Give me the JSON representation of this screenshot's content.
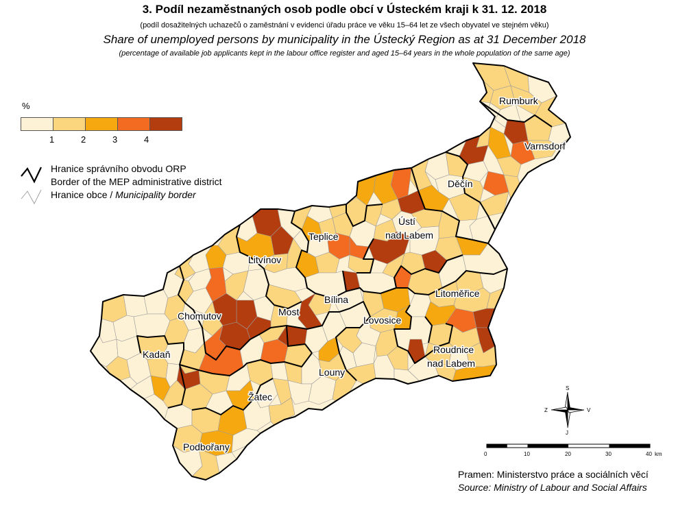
{
  "title": {
    "cz": "3. Podíl nezaměstnaných osob podle obcí v Ústeckém kraji k 31. 12. 2018",
    "cz_sub": "(podíl dosažitelných uchazečů o zaměstnání v evidenci úřadu práce ve věku 15–64 let ze všech obyvatel ve stejném věku)",
    "en": "Share of unemployed persons by municipality in the Ústecký Region as at 31 December 2018",
    "en_sub": "(percentage of available job applicants kept in the labour office register and aged 15–64 years in the whole population of the same age)"
  },
  "legend": {
    "unit": "%",
    "class_colors": [
      "#fdf1d6",
      "#fcd67f",
      "#f6a810",
      "#f26b21",
      "#b33d0e"
    ],
    "ticks": [
      "1",
      "2",
      "3",
      "4"
    ],
    "orp_border_cz": "Hranice správního obvodu ORP",
    "orp_border_en": "Border of the MEP administrative district",
    "muni_border_cz": "Hranice obce /",
    "muni_border_en": "Municipality border"
  },
  "cities": [
    "Rumburk",
    "Varnsdorf",
    "Děčín",
    "Ústí",
    "nad Labem",
    "Teplice",
    "Litvínov",
    "Bílina",
    "Most",
    "Chomutov",
    "Litoměřice",
    "Lovosice",
    "Kadaň",
    "Roudnice",
    "nad Labem",
    "Louny",
    "Žatec",
    "Podbořany"
  ],
  "compass": {
    "n": "S",
    "s": "J",
    "e": "V",
    "w": "Z"
  },
  "scale": {
    "ticks": [
      "0",
      "10",
      "20",
      "30",
      "40"
    ],
    "unit": "km"
  },
  "source": {
    "cz": "Pramen: Ministerstvo práce a sociálních věcí",
    "en": "Source: Ministry of Labour and Social Affairs"
  }
}
